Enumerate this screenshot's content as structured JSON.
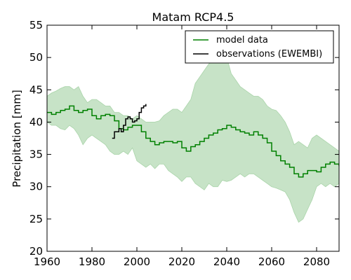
{
  "chart_data": {
    "type": "line",
    "title": "Matam RCP4.5",
    "xlabel": "",
    "ylabel": "Precipitation [mm]",
    "xlim": [
      1960,
      2090
    ],
    "ylim": [
      20,
      55
    ],
    "xticks": [
      1960,
      1980,
      2000,
      2020,
      2040,
      2060,
      2080
    ],
    "yticks": [
      20,
      25,
      30,
      35,
      40,
      45,
      50,
      55
    ],
    "grid": false,
    "legend_position": "top-right",
    "series": [
      {
        "name": "model data",
        "color": "#008000",
        "x": [
          1960,
          1962,
          1964,
          1966,
          1968,
          1970,
          1972,
          1974,
          1976,
          1978,
          1980,
          1982,
          1984,
          1986,
          1988,
          1990,
          1992,
          1994,
          1996,
          1998,
          2000,
          2002,
          2004,
          2006,
          2008,
          2010,
          2012,
          2014,
          2016,
          2018,
          2020,
          2022,
          2024,
          2026,
          2028,
          2030,
          2032,
          2034,
          2036,
          2038,
          2040,
          2042,
          2044,
          2046,
          2048,
          2050,
          2052,
          2054,
          2056,
          2058,
          2060,
          2062,
          2064,
          2066,
          2068,
          2070,
          2072,
          2074,
          2076,
          2078,
          2080,
          2082,
          2084,
          2086,
          2088,
          2090
        ],
        "values": [
          41.5,
          41.2,
          41.5,
          41.8,
          42.0,
          42.5,
          41.8,
          41.5,
          41.8,
          42.0,
          41.0,
          40.5,
          41.0,
          41.2,
          41.0,
          40.2,
          39.0,
          38.8,
          39.2,
          39.5,
          39.5,
          38.5,
          37.5,
          37.0,
          36.5,
          36.8,
          37.0,
          37.0,
          36.8,
          37.0,
          36.0,
          35.5,
          36.2,
          36.5,
          37.0,
          37.5,
          38.0,
          38.3,
          38.8,
          39.0,
          39.5,
          39.2,
          38.8,
          38.5,
          38.3,
          38.0,
          38.5,
          38.0,
          37.5,
          36.8,
          35.5,
          34.8,
          34.0,
          33.5,
          33.0,
          32.0,
          31.5,
          32.0,
          32.5,
          32.5,
          32.3,
          33.0,
          33.5,
          33.8,
          33.5,
          33.2
        ],
        "band_low": [
          40.0,
          39.5,
          39.5,
          39.0,
          38.8,
          39.5,
          39.0,
          38.0,
          36.5,
          37.5,
          38.0,
          37.5,
          37.0,
          36.5,
          35.5,
          35.0,
          35.0,
          35.5,
          35.0,
          36.0,
          34.0,
          33.5,
          33.0,
          33.5,
          32.8,
          33.5,
          33.5,
          32.5,
          32.0,
          31.5,
          30.8,
          31.5,
          31.5,
          30.5,
          30.0,
          29.5,
          30.5,
          30.0,
          30.0,
          31.0,
          30.8,
          31.0,
          31.5,
          32.0,
          31.5,
          32.0,
          32.0,
          31.5,
          31.0,
          30.5,
          30.0,
          29.8,
          29.5,
          29.2,
          28.0,
          26.0,
          24.5,
          25.0,
          26.5,
          28.0,
          30.0,
          30.5,
          30.0,
          30.5,
          30.0,
          30.5
        ],
        "band_high": [
          44.0,
          44.5,
          44.8,
          45.2,
          45.5,
          45.5,
          45.0,
          45.5,
          44.0,
          43.0,
          43.5,
          43.5,
          43.0,
          42.5,
          42.5,
          41.5,
          41.5,
          41.0,
          41.0,
          40.5,
          41.0,
          40.5,
          40.0,
          40.0,
          40.0,
          40.2,
          41.0,
          41.5,
          42.0,
          42.0,
          41.5,
          42.5,
          43.5,
          46.0,
          47.0,
          48.0,
          49.0,
          49.5,
          50.5,
          51.0,
          50.0,
          47.5,
          46.5,
          45.5,
          45.0,
          44.5,
          44.0,
          44.0,
          43.5,
          42.5,
          42.0,
          41.8,
          41.0,
          40.0,
          38.5,
          36.5,
          37.0,
          36.5,
          36.0,
          37.5,
          38.0,
          37.5,
          37.0,
          36.5,
          36.0,
          35.5
        ]
      },
      {
        "name": "observations (EWEMBI)",
        "color": "#000000",
        "x": [
          1989,
          1990,
          1991,
          1992,
          1993,
          1994,
          1995,
          1996,
          1997,
          1998,
          1999,
          2000,
          2001,
          2002,
          2003,
          2004
        ],
        "values": [
          37.5,
          38.5,
          38.5,
          39.0,
          38.5,
          39.5,
          40.5,
          40.8,
          40.5,
          40.0,
          40.2,
          40.5,
          41.5,
          42.2,
          42.5,
          42.8
        ]
      }
    ],
    "band_color": "#c7e3c7"
  }
}
